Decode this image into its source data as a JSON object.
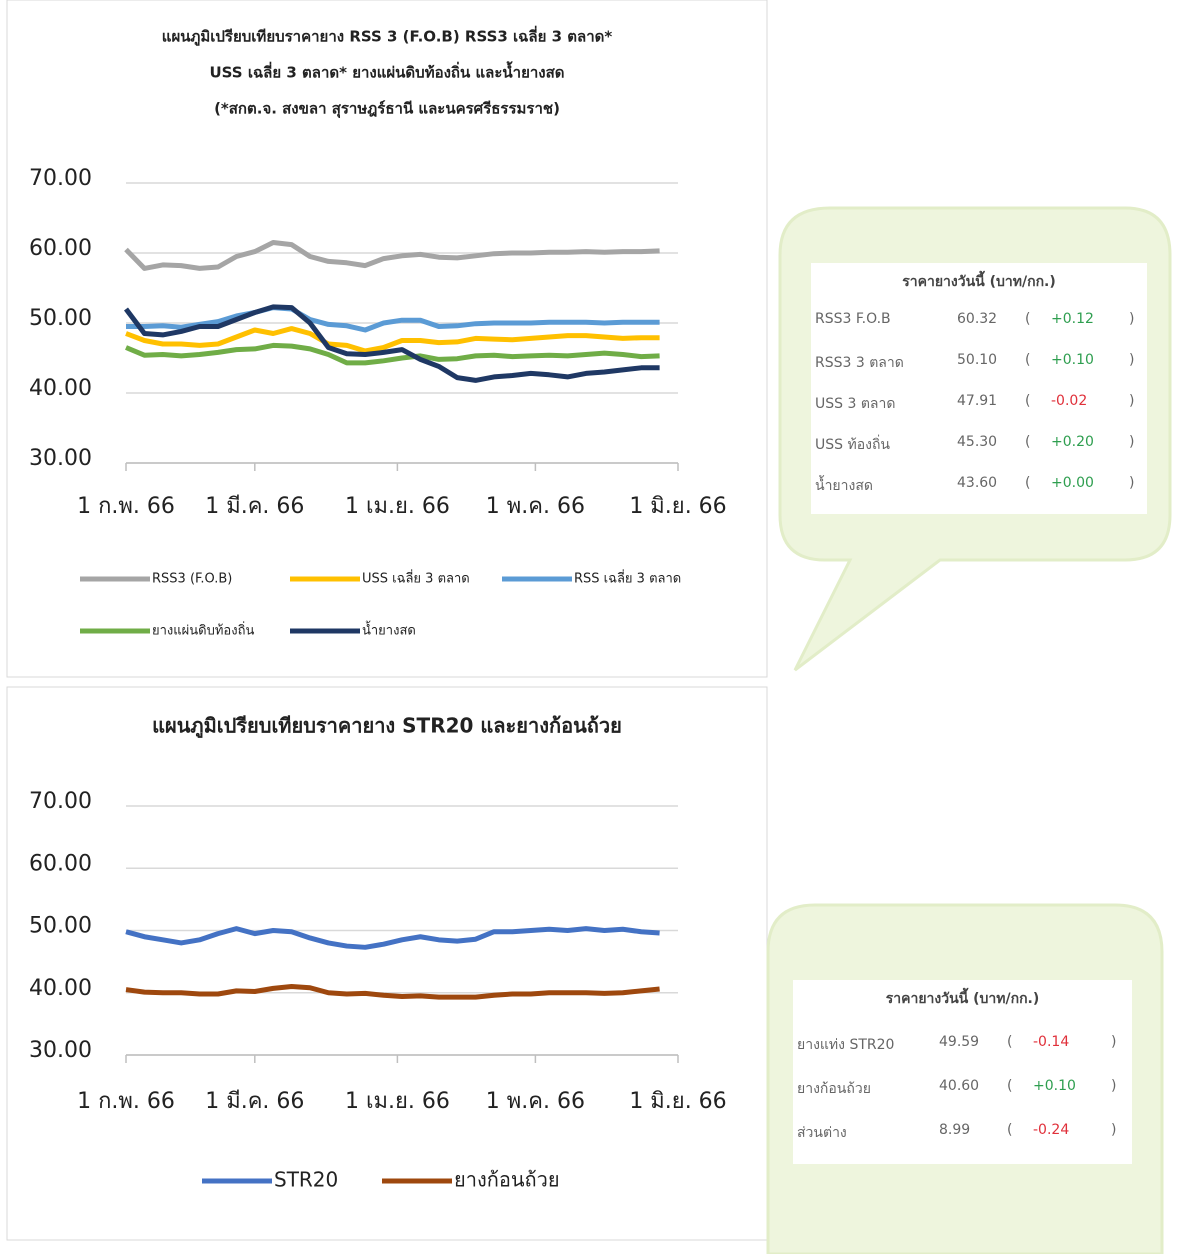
{
  "chart_data": [
    {
      "type": "line",
      "title": [
        "แผนภูมิเปรียบเทียบราคายาง RSS 3 (F.O.B) RSS3 เฉลี่ย 3 ตลาด*",
        "USS เฉลี่ย 3 ตลาด* ยางแผ่นดิบท้องถิ่น และน้ำยางสด",
        "(*สกต.จ. สงขลา สุราษฎร์ธานี และนครศรีธรรมราช)"
      ],
      "x": [
        0,
        4,
        8,
        12,
        16,
        20,
        24,
        28,
        32,
        36,
        40,
        44,
        48,
        52,
        56,
        60,
        64,
        68,
        72,
        76,
        80,
        84,
        88,
        92,
        96,
        100,
        104,
        108,
        112,
        116
      ],
      "xlim": [
        0,
        120
      ],
      "xticks": [
        {
          "value": 0,
          "label": "1 ก.พ. 66"
        },
        {
          "value": 28,
          "label": "1 มี.ค. 66"
        },
        {
          "value": 59,
          "label": "1 เม.ย. 66"
        },
        {
          "value": 89,
          "label": "1 พ.ค. 66"
        },
        {
          "value": 120,
          "label": "1 มิ.ย. 66"
        }
      ],
      "ylim": [
        30,
        70
      ],
      "yticks": [
        {
          "value": 30,
          "label": "30.00"
        },
        {
          "value": 40,
          "label": "40.00"
        },
        {
          "value": 50,
          "label": "50.00"
        },
        {
          "value": 60,
          "label": "60.00"
        },
        {
          "value": 70,
          "label": "70.00"
        }
      ],
      "grid": true,
      "series": [
        {
          "name": "RSS3 (F.O.B)",
          "color": "#a5a5a5",
          "values": [
            60.5,
            57.8,
            58.3,
            58.2,
            57.8,
            58.0,
            59.5,
            60.2,
            61.5,
            61.2,
            59.5,
            58.8,
            58.6,
            58.2,
            59.2,
            59.6,
            59.8,
            59.4,
            59.3,
            59.6,
            59.9,
            60.0,
            60.0,
            60.1,
            60.1,
            60.2,
            60.1,
            60.2,
            60.2,
            60.3
          ]
        },
        {
          "name": "USS เฉลี่ย 3 ตลาด",
          "color": "#ffc000",
          "values": [
            48.5,
            47.5,
            47.0,
            47.0,
            46.8,
            47.0,
            48.0,
            49.0,
            48.5,
            49.2,
            48.5,
            47.0,
            46.8,
            46.0,
            46.5,
            47.5,
            47.5,
            47.2,
            47.3,
            47.8,
            47.7,
            47.6,
            47.8,
            48.0,
            48.2,
            48.2,
            48.0,
            47.8,
            47.9,
            47.9
          ]
        },
        {
          "name": "RSS เฉลี่ย 3 ตลาด",
          "color": "#5b9bd5",
          "values": [
            49.5,
            49.5,
            49.6,
            49.4,
            49.8,
            50.2,
            51.0,
            51.5,
            52.2,
            52.0,
            50.5,
            49.8,
            49.6,
            49.0,
            50.0,
            50.4,
            50.4,
            49.5,
            49.6,
            49.9,
            50.0,
            50.0,
            50.0,
            50.1,
            50.1,
            50.1,
            50.0,
            50.1,
            50.1,
            50.1
          ]
        },
        {
          "name": "ยางแผ่นดิบท้องถิ่น",
          "color": "#70ad47",
          "values": [
            46.5,
            45.4,
            45.5,
            45.3,
            45.5,
            45.8,
            46.2,
            46.3,
            46.8,
            46.7,
            46.3,
            45.5,
            44.3,
            44.3,
            44.6,
            45.0,
            45.3,
            44.8,
            44.9,
            45.3,
            45.4,
            45.2,
            45.3,
            45.4,
            45.3,
            45.5,
            45.7,
            45.5,
            45.2,
            45.3
          ]
        },
        {
          "name": "น้ำยางสด",
          "color": "#1f3864",
          "values": [
            52.0,
            48.5,
            48.3,
            48.8,
            49.5,
            49.5,
            50.5,
            51.5,
            52.3,
            52.2,
            50.0,
            46.5,
            45.6,
            45.5,
            45.8,
            46.2,
            44.8,
            43.8,
            42.2,
            41.8,
            42.3,
            42.5,
            42.8,
            42.6,
            42.3,
            42.8,
            43.0,
            43.3,
            43.6,
            43.6
          ]
        }
      ]
    },
    {
      "type": "line",
      "title": "แผนภูมิเปรียบเทียบราคายาง STR20 และยางก้อนถ้วย",
      "x": [
        0,
        4,
        8,
        12,
        16,
        20,
        24,
        28,
        32,
        36,
        40,
        44,
        48,
        52,
        56,
        60,
        64,
        68,
        72,
        76,
        80,
        84,
        88,
        92,
        96,
        100,
        104,
        108,
        112,
        116
      ],
      "xlim": [
        0,
        120
      ],
      "xticks": [
        {
          "value": 0,
          "label": "1 ก.พ. 66"
        },
        {
          "value": 28,
          "label": "1 มี.ค. 66"
        },
        {
          "value": 59,
          "label": "1 เม.ย. 66"
        },
        {
          "value": 89,
          "label": "1 พ.ค. 66"
        },
        {
          "value": 120,
          "label": "1 มิ.ย. 66"
        }
      ],
      "ylim": [
        30,
        70
      ],
      "yticks": [
        {
          "value": 30,
          "label": "30.00"
        },
        {
          "value": 40,
          "label": "40.00"
        },
        {
          "value": 50,
          "label": "50.00"
        },
        {
          "value": 60,
          "label": "60.00"
        },
        {
          "value": 70,
          "label": "70.00"
        }
      ],
      "grid": true,
      "series": [
        {
          "name": "STR20",
          "color": "#4472c4",
          "values": [
            49.8,
            49.0,
            48.5,
            48.0,
            48.5,
            49.5,
            50.3,
            49.5,
            50.0,
            49.8,
            48.8,
            48.0,
            47.5,
            47.3,
            47.8,
            48.5,
            49.0,
            48.5,
            48.3,
            48.6,
            49.8,
            49.8,
            50.0,
            50.2,
            50.0,
            50.3,
            50.0,
            50.2,
            49.8,
            49.6
          ]
        },
        {
          "name": "ยางก้อนถ้วย",
          "color": "#9e480e",
          "values": [
            40.5,
            40.1,
            40.0,
            40.0,
            39.8,
            39.8,
            40.3,
            40.2,
            40.7,
            41.0,
            40.8,
            40.0,
            39.8,
            39.9,
            39.6,
            39.4,
            39.5,
            39.3,
            39.3,
            39.3,
            39.6,
            39.8,
            39.8,
            40.0,
            40.0,
            40.0,
            39.9,
            40.0,
            40.3,
            40.6
          ]
        }
      ]
    }
  ],
  "price_tables": [
    {
      "title": "ราคายางวันนี้ (บาท/กก.)",
      "rows": [
        [
          "RSS3 F.O.B",
          "60.32",
          "(",
          "+0.12",
          ")"
        ],
        [
          "RSS3 3 ตลาด",
          "50.10",
          "(",
          "+0.10",
          ")"
        ],
        [
          "USS 3 ตลาด",
          "47.91",
          "(",
          "-0.02",
          ")"
        ],
        [
          "USS ท้องถิ่น",
          "45.30",
          "(",
          "+0.20",
          ")"
        ],
        [
          "น้ำยางสด",
          "43.60",
          "(",
          "+0.00",
          ")"
        ]
      ]
    },
    {
      "title": "ราคายางวันนี้ (บาท/กก.)",
      "rows": [
        [
          "ยางแท่ง STR20",
          "49.59",
          "(",
          "-0.14",
          ")"
        ],
        [
          "ยางก้อนถ้วย",
          "40.60",
          "(",
          "+0.10",
          ")"
        ],
        [
          "ส่วนต่าง",
          "8.99",
          "(",
          "-0.24",
          ")"
        ]
      ]
    }
  ]
}
